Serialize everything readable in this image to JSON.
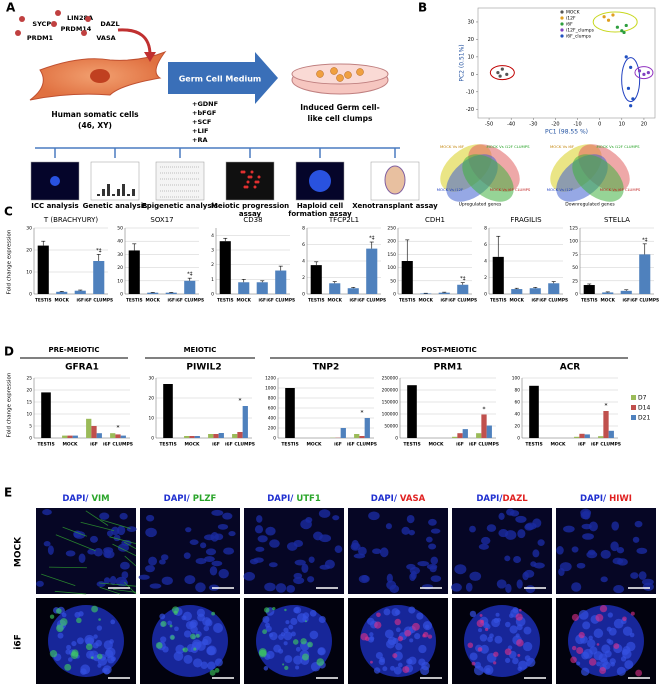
{
  "panel_labels": [
    "A",
    "B",
    "C",
    "D",
    "E"
  ],
  "panel_a": {
    "genes": [
      "LIN28A",
      "SYCP3",
      "DAZL",
      "PRDM14",
      "PRDM1",
      "VASA"
    ],
    "source": "Human somatic cells",
    "source_sub": "(46, XY)",
    "medium": "Germ Cell Medium",
    "factors": [
      "+GDNF",
      "+bFGF",
      "+SCF",
      "+LIF",
      "+RA"
    ],
    "target": "Induced Germ cell-",
    "target_sub": "like cell clumps",
    "assays": [
      "ICC analysis",
      "Genetic analysis",
      "Epigenetic analysis",
      "Meiotic progression assay",
      "Haploid cell formation assay",
      "Xenotransplant assay"
    ]
  },
  "panel_b": {
    "pca": {
      "x_label": "PC1 (98.55 %)",
      "y_label": "PC2 (0.51%)",
      "xlim": [
        -55,
        25
      ],
      "xticks": [
        -50,
        -40,
        -30,
        -20,
        -10,
        0,
        10,
        20
      ],
      "ylim": [
        -25,
        38
      ],
      "yticks": [
        -20,
        -10,
        0,
        10,
        20,
        30
      ],
      "series": [
        {
          "name": "MOCK",
          "color": "#555555",
          "x": [
            -46,
            -44,
            -42,
            -45
          ],
          "y": [
            1,
            3,
            0,
            -1
          ]
        },
        {
          "name": "i12F",
          "color": "#e0a020",
          "x": [
            2,
            4,
            6
          ],
          "y": [
            33,
            31,
            34
          ]
        },
        {
          "name": "i6F",
          "color": "#2e9e3e",
          "x": [
            8,
            10,
            12,
            11
          ],
          "y": [
            27,
            25,
            28,
            24
          ]
        },
        {
          "name": "i12F_clumps",
          "color": "#8040c0",
          "x": [
            18,
            20,
            22
          ],
          "y": [
            2,
            0,
            1
          ]
        },
        {
          "name": "i6F_clumps",
          "color": "#2050c0",
          "x": [
            12,
            14,
            13,
            15,
            14
          ],
          "y": [
            10,
            4,
            -8,
            -14,
            -18
          ]
        }
      ]
    },
    "venn_labels": [
      "MOCK Vs i6F",
      "MOCK Vs i12F CLUMPS",
      "MOCK Vs i6F CLUMPS",
      "MOCK Vs i12F"
    ],
    "venn_captions": [
      "Upregulated genes",
      "Downregulated genes"
    ]
  },
  "panel_c": {
    "y_label": "Fold change expression",
    "categories": [
      "TESTIS",
      "MOCK",
      "i6F",
      "i6F CLUMPS"
    ],
    "testis_color": "#000000",
    "bar_color": "#4f81bd",
    "charts": [
      {
        "title": "T (BRACHYURY)",
        "values": [
          22,
          1,
          1.5,
          15
        ],
        "errors": [
          2,
          0.2,
          0.3,
          3
        ],
        "ylim": [
          0,
          30
        ],
        "yticks": [
          0,
          10,
          20,
          30
        ],
        "annotation": "*‡"
      },
      {
        "title": "SOX17",
        "values": [
          33,
          1,
          1,
          10
        ],
        "errors": [
          5,
          0.2,
          0.2,
          2
        ],
        "ylim": [
          0,
          50
        ],
        "yticks": [
          0,
          10,
          20,
          30,
          40,
          50
        ],
        "annotation": "*‡"
      },
      {
        "title": "CD38",
        "values": [
          3.6,
          0.8,
          0.8,
          1.6
        ],
        "errors": [
          0.2,
          0.2,
          0.1,
          0.3
        ],
        "ylim": [
          0,
          4.5
        ],
        "yticks": [
          0,
          1,
          2,
          3,
          4
        ]
      },
      {
        "title": "TFCP2L1",
        "values": [
          3.5,
          1.3,
          0.7,
          5.5
        ],
        "errors": [
          0.4,
          0.2,
          0.1,
          0.8
        ],
        "ylim": [
          0,
          8
        ],
        "yticks": [
          0,
          2,
          4,
          6,
          8
        ],
        "annotation": "*‡"
      },
      {
        "title": "CDH1",
        "values": [
          125,
          2,
          5,
          35
        ],
        "errors": [
          80,
          1,
          2,
          8
        ],
        "ylim": [
          0,
          250
        ],
        "yticks": [
          0,
          50,
          100,
          150,
          200,
          250
        ],
        "annotation": "*‡"
      },
      {
        "title": "FRAGILIS",
        "values": [
          4.5,
          0.6,
          0.7,
          1.3
        ],
        "errors": [
          2.5,
          0.1,
          0.1,
          0.2
        ],
        "ylim": [
          0,
          8
        ],
        "yticks": [
          0,
          2,
          4,
          6,
          8
        ]
      },
      {
        "title": "STELLA",
        "values": [
          17,
          3,
          6,
          75
        ],
        "errors": [
          2,
          1,
          2,
          20
        ],
        "ylim": [
          0,
          125
        ],
        "yticks": [
          0,
          25,
          50,
          75,
          100,
          125
        ],
        "annotation": "*‡"
      }
    ]
  },
  "panel_d": {
    "y_label": "Fold change expression",
    "stages": [
      "PRE-MEIOTIC",
      "MEIOTIC",
      "POST-MEIOTIC"
    ],
    "categories": [
      "TESTIS",
      "MOCK",
      "i6F",
      "i6F CLUMPS"
    ],
    "testis_color": "#000000",
    "series": [
      {
        "name": "D7",
        "color": "#9bbb59"
      },
      {
        "name": "D14",
        "color": "#c0504d"
      },
      {
        "name": "D21",
        "color": "#4f81bd"
      }
    ],
    "charts": [
      {
        "title": "GFRA1",
        "testis": 19,
        "ylim": [
          0,
          25
        ],
        "yticks": [
          0,
          5,
          10,
          15,
          20,
          25
        ],
        "series_values": [
          [
            null,
            1,
            8,
            2
          ],
          [
            null,
            1,
            5,
            1.5
          ],
          [
            null,
            1,
            2,
            1
          ]
        ],
        "annotation": "*"
      },
      {
        "title": "PIWIL2",
        "testis": 27,
        "ylim": [
          0,
          30
        ],
        "yticks": [
          0,
          10,
          20,
          30
        ],
        "series_values": [
          [
            null,
            1,
            2,
            2
          ],
          [
            null,
            1,
            2,
            3
          ],
          [
            null,
            1,
            2.5,
            16
          ]
        ],
        "annotation": "*"
      },
      {
        "title": "TNP2",
        "testis": 1000,
        "ylim": [
          0,
          1200
        ],
        "yticks": [
          0,
          200,
          400,
          600,
          800,
          1000,
          1200
        ],
        "series_values": [
          [
            null,
            0,
            5,
            80
          ],
          [
            null,
            0,
            5,
            40
          ],
          [
            null,
            0,
            200,
            400
          ]
        ],
        "annotation": "*"
      },
      {
        "title": "PRM1",
        "testis": 220000,
        "ylim": [
          0,
          250000
        ],
        "yticks": [
          0,
          50000,
          100000,
          150000,
          200000,
          250000
        ],
        "series_values": [
          [
            null,
            0,
            5000,
            20000
          ],
          [
            null,
            0,
            20000,
            98000
          ],
          [
            null,
            0,
            37000,
            52000
          ]
        ],
        "annotation": "*"
      },
      {
        "title": "ACR",
        "testis": 87,
        "ylim": [
          0,
          100
        ],
        "yticks": [
          0,
          20,
          40,
          60,
          80,
          100
        ],
        "series_values": [
          [
            null,
            0,
            2,
            3
          ],
          [
            null,
            0,
            7,
            45
          ],
          [
            null,
            0,
            6,
            12
          ]
        ],
        "annotation": "*"
      }
    ]
  },
  "panel_e": {
    "rows": [
      "MOCK",
      "i6F"
    ],
    "stains": [
      {
        "dapi": "DAPI/",
        "marker": " VIM",
        "color": "#2aa52a"
      },
      {
        "dapi": "DAPI/",
        "marker": " PLZF",
        "color": "#2aa52a"
      },
      {
        "dapi": "DAPI/",
        "marker": " UTF1",
        "color": "#2aa52a"
      },
      {
        "dapi": "DAPI/",
        "marker": " VASA",
        "color": "#e02020"
      },
      {
        "dapi": "DAPI/",
        "marker": "DAZL",
        "color": "#e02020"
      },
      {
        "dapi": "DAPI/",
        "marker": " HIWI",
        "color": "#e02020"
      }
    ]
  }
}
